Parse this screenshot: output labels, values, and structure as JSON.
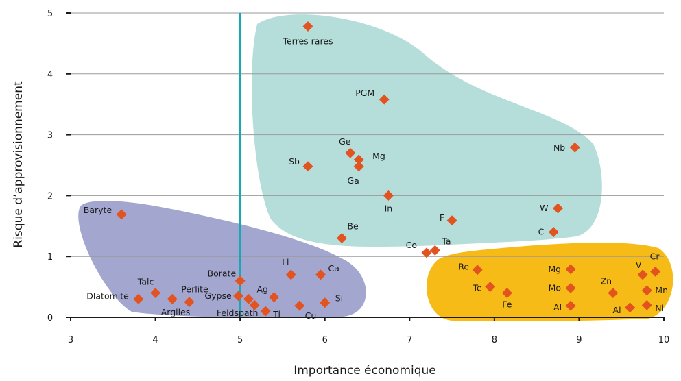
{
  "chart_data": {
    "type": "scatter",
    "xlabel": "Importance économique",
    "ylabel": "Risque d’approvisionnement",
    "xlim": [
      3,
      10
    ],
    "ylim": [
      0,
      5
    ],
    "x_ticks": [
      3,
      4,
      5,
      6,
      7,
      8,
      9,
      10
    ],
    "y_ticks": [
      0,
      1,
      2,
      3,
      4,
      5
    ],
    "grid": "horizontal",
    "threshold_x": 5,
    "colors": {
      "marker": "#e2531f",
      "threshold_line": "#1aa6b4",
      "grid": "#9a9a9a",
      "zone_left": "#a3a6cf",
      "zone_top": "#b5dedb",
      "zone_right": "#f6bb16"
    },
    "points": [
      {
        "label": "Terres rares",
        "x": 5.8,
        "y": 4.78
      },
      {
        "label": "PGM",
        "x": 6.7,
        "y": 3.58
      },
      {
        "label": "Nb",
        "x": 8.95,
        "y": 2.79
      },
      {
        "label": "Ge",
        "x": 6.3,
        "y": 2.7
      },
      {
        "label": "Mg",
        "x": 6.4,
        "y": 2.59
      },
      {
        "label": "Ga",
        "x": 6.4,
        "y": 2.48
      },
      {
        "label": "Sb",
        "x": 5.8,
        "y": 2.48
      },
      {
        "label": "In",
        "x": 6.75,
        "y": 2.0
      },
      {
        "label": "W",
        "x": 8.75,
        "y": 1.79
      },
      {
        "label": "Baryte",
        "x": 3.6,
        "y": 1.69
      },
      {
        "label": "F",
        "x": 7.5,
        "y": 1.59
      },
      {
        "label": "C",
        "x": 8.7,
        "y": 1.4
      },
      {
        "label": "Be",
        "x": 6.2,
        "y": 1.3
      },
      {
        "label": "Co",
        "x": 7.2,
        "y": 1.06
      },
      {
        "label": "Ta",
        "x": 7.3,
        "y": 1.1
      },
      {
        "label": "Li",
        "x": 5.6,
        "y": 0.7
      },
      {
        "label": "Ca",
        "x": 5.95,
        "y": 0.7
      },
      {
        "label": "Borate",
        "x": 5.0,
        "y": 0.6
      },
      {
        "label": "Re",
        "x": 7.8,
        "y": 0.78
      },
      {
        "label": "Mg",
        "x": 8.9,
        "y": 0.79
      },
      {
        "label": "V",
        "x": 9.75,
        "y": 0.7
      },
      {
        "label": "Cr",
        "x": 9.9,
        "y": 0.75
      },
      {
        "label": "Te",
        "x": 7.95,
        "y": 0.5
      },
      {
        "label": "Mo",
        "x": 8.9,
        "y": 0.48
      },
      {
        "label": "Mn",
        "x": 9.8,
        "y": 0.44
      },
      {
        "label": "Zn",
        "x": 9.4,
        "y": 0.4
      },
      {
        "label": "Fe",
        "x": 8.15,
        "y": 0.4
      },
      {
        "label": "Talc",
        "x": 4.0,
        "y": 0.4
      },
      {
        "label": "Gypse",
        "x": 4.98,
        "y": 0.35
      },
      {
        "label": "Ag",
        "x": 5.1,
        "y": 0.3
      },
      {
        "label": "Dlatomite",
        "x": 3.8,
        "y": 0.3
      },
      {
        "label": "Perlite",
        "x": 4.2,
        "y": 0.3
      },
      {
        "label": "Argiles",
        "x": 4.4,
        "y": 0.25
      },
      {
        "label": "Si",
        "x": 6.0,
        "y": 0.24
      },
      {
        "label": "Feldspath",
        "x": 5.17,
        "y": 0.2
      },
      {
        "label": "Cu",
        "x": 5.7,
        "y": 0.19
      },
      {
        "label": "Al",
        "x": 8.9,
        "y": 0.19
      },
      {
        "label": "Ni",
        "x": 9.8,
        "y": 0.2
      },
      {
        "label": "Al",
        "x": 9.6,
        "y": 0.16
      },
      {
        "label": "Ti",
        "x": 5.3,
        "y": 0.1
      },
      {
        "label": "",
        "x": 5.4,
        "y": 0.33
      }
    ]
  }
}
